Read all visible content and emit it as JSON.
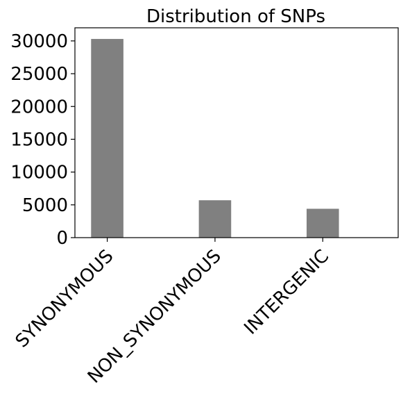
{
  "chart_data": {
    "type": "bar",
    "title": "Distribution of SNPs",
    "xlabel": "",
    "ylabel": "",
    "categories": [
      "SYNONYMOUS",
      "NON_SYNONYMOUS",
      "INTERGENIC"
    ],
    "values": [
      30300,
      5700,
      4400
    ],
    "ylim": [
      0,
      32000
    ],
    "yticks": [
      0,
      5000,
      10000,
      15000,
      20000,
      25000,
      30000
    ],
    "ytick_labels": [
      "0",
      "5000",
      "10000",
      "15000",
      "20000",
      "25000",
      "30000"
    ],
    "bar_color": "#808080",
    "grid": false,
    "legend": "none"
  }
}
